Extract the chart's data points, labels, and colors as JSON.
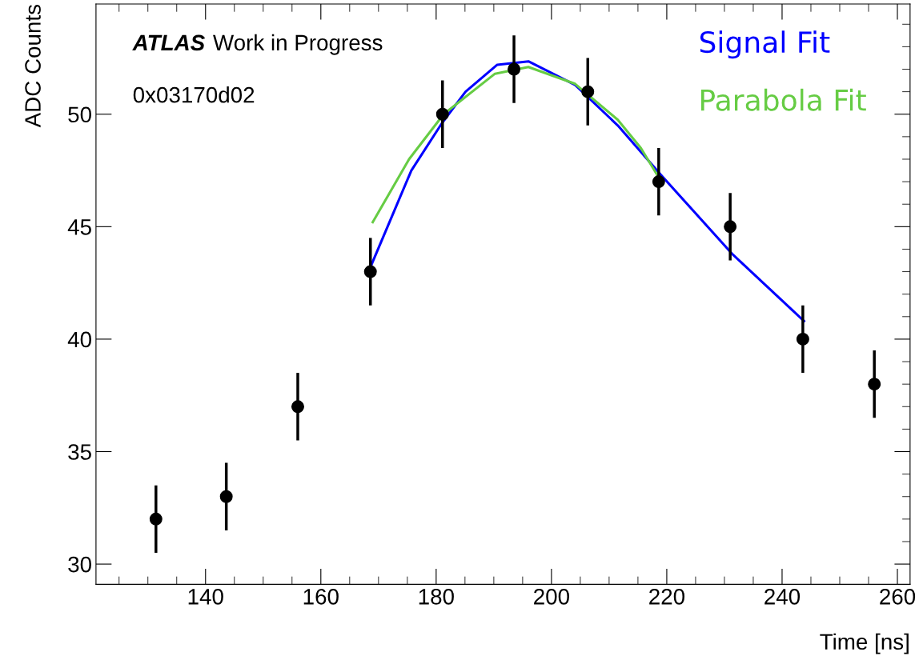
{
  "chart_data": {
    "type": "scatter",
    "xlabel": "Time [ns]",
    "ylabel": "ADC Counts",
    "annotations": [
      "ATLAS",
      "Work in Progress",
      "0x03170d02"
    ],
    "xlim": [
      121,
      262.2
    ],
    "ylim": [
      29.1,
      54.9
    ],
    "xticks": [
      140,
      160,
      180,
      200,
      220,
      240,
      260
    ],
    "yticks": [
      30,
      35,
      40,
      45,
      50
    ],
    "grid": false,
    "legend": false,
    "marker": "circle",
    "series": [
      {
        "color": "#000000",
        "x": [
          131.4,
          143.6,
          156,
          168.6,
          181.1,
          193.5,
          206.3,
          218.6,
          231,
          243.6,
          256
        ],
        "values": [
          32,
          33,
          37,
          43,
          50,
          52,
          51,
          47,
          45,
          40,
          38
        ],
        "errors": [
          1.5,
          1.5,
          1.5,
          1.5,
          1.5,
          1.5,
          1.5,
          1.5,
          1.5,
          1.5,
          1.5
        ]
      },
      {
        "type": "line",
        "name": "Signal Fit",
        "color": "#0000ff",
        "marker": "none",
        "x": [
          168.6,
          175.7,
          181,
          185.1,
          190.6,
          196,
          204.1,
          211.5,
          219,
          231.3,
          243.8
        ],
        "values": [
          43.2,
          47.5,
          49.6,
          51.0,
          52.2,
          52.35,
          51.3,
          49.5,
          47.3,
          43.8,
          40.8
        ]
      },
      {
        "type": "line",
        "name": "Parabola Fit",
        "color": "#66cc44",
        "marker": "none",
        "x": [
          169,
          175.3,
          181.3,
          190.2,
          196,
          204.1,
          211.5,
          215.5,
          218.7
        ],
        "values": [
          45.2,
          48.0,
          50.0,
          51.8,
          52.1,
          51.35,
          49.75,
          48.5,
          47.15
        ]
      }
    ]
  }
}
